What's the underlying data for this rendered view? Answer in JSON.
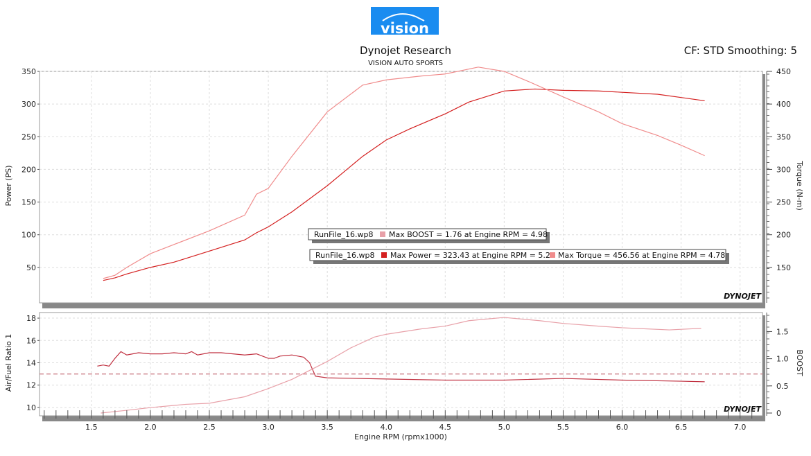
{
  "header": {
    "logo_text": "vision",
    "title": "Dynojet Research",
    "subtitle": "VISION AUTO SPORTS",
    "cf_text": "CF: STD Smoothing: 5",
    "watermark": "DYNOJET"
  },
  "colors": {
    "power": "#d42020",
    "torque": "#f08c8c",
    "afr": "#c03040",
    "boost": "#e8a0a8",
    "logo_bg": "#1a8cf0"
  },
  "chart_data": [
    {
      "type": "line",
      "xlabel": "Engine RPM (rpmx1000)",
      "ylabel": "Power (PS)",
      "ylabel_right": "Torque (N-m)",
      "xlim": [
        1.06,
        7.19
      ],
      "ylim": [
        0,
        350
      ],
      "ylim_right": [
        100,
        450
      ],
      "yticks": [
        50,
        100,
        150,
        200,
        250,
        300,
        350
      ],
      "yticks_right": [
        150,
        200,
        250,
        300,
        350,
        400,
        450
      ],
      "grid": true,
      "series": [
        {
          "axis": "left",
          "x": [
            1.6,
            1.7,
            1.8,
            2.0,
            2.2,
            2.5,
            2.8,
            2.9,
            3.0,
            3.2,
            3.5,
            3.8,
            4.0,
            4.2,
            4.5,
            4.7,
            5.0,
            5.26,
            5.5,
            5.8,
            6.0,
            6.3,
            6.5,
            6.7
          ],
          "values": [
            30,
            34,
            40,
            50,
            58,
            75,
            92,
            103,
            112,
            135,
            175,
            220,
            245,
            262,
            285,
            303,
            320,
            323,
            321,
            320,
            318,
            315,
            310,
            305
          ]
        },
        {
          "axis": "right",
          "x": [
            1.6,
            1.7,
            1.8,
            2.0,
            2.2,
            2.5,
            2.8,
            2.9,
            3.0,
            3.2,
            3.5,
            3.8,
            4.0,
            4.3,
            4.5,
            4.78,
            5.0,
            5.2,
            5.5,
            5.8,
            6.0,
            6.3,
            6.5,
            6.7
          ],
          "values": [
            133,
            138,
            150,
            171,
            185,
            206,
            230,
            262,
            271,
            320,
            388,
            429,
            437,
            443,
            446,
            456.56,
            450,
            435,
            411,
            388,
            370,
            352,
            337,
            321
          ]
        }
      ],
      "annotations": [
        {
          "file": "RunFile_16.wp8",
          "text": "Max BOOST = 1.76 at Engine RPM = 4.98",
          "color": "boost"
        },
        {
          "file": "RunFile_16.wp8",
          "text": "Max Power = 323.43 at Engine RPM = 5.26",
          "color": "power",
          "text2": "Max Torque = 456.56 at Engine RPM = 4.78",
          "color2": "torque"
        }
      ]
    },
    {
      "type": "line",
      "xlabel": "Engine RPM (rpmx1000)",
      "ylabel": "Air/Fuel Ratio 1",
      "ylabel_right": "BOOST",
      "xlim": [
        1.06,
        7.19
      ],
      "ylim": [
        9.5,
        18.5
      ],
      "ylim_right": [
        0,
        1.85
      ],
      "xticks": [
        "1.5",
        "2.0",
        "2.5",
        "3.0",
        "3.5",
        "4.0",
        "4.5",
        "5.0",
        "5.5",
        "6.0",
        "6.5",
        "7.0"
      ],
      "yticks": [
        10,
        12,
        14,
        16,
        18
      ],
      "yticks_right": [
        0,
        0.5,
        1.0,
        1.5
      ],
      "reference_line_afr": 13,
      "grid": true,
      "series": [
        {
          "axis": "left",
          "x": [
            1.55,
            1.6,
            1.65,
            1.7,
            1.75,
            1.8,
            1.85,
            1.9,
            2.0,
            2.1,
            2.2,
            2.3,
            2.35,
            2.4,
            2.5,
            2.6,
            2.7,
            2.8,
            2.9,
            3.0,
            3.05,
            3.1,
            3.2,
            3.3,
            3.35,
            3.4,
            3.5,
            4.0,
            4.5,
            5.0,
            5.5,
            6.0,
            6.5,
            6.7
          ],
          "values": [
            13.7,
            13.8,
            13.7,
            14.4,
            15.0,
            14.7,
            14.8,
            14.9,
            14.8,
            14.8,
            14.9,
            14.8,
            15.0,
            14.7,
            14.9,
            14.9,
            14.8,
            14.7,
            14.8,
            14.4,
            14.4,
            14.6,
            14.7,
            14.5,
            14.0,
            12.8,
            12.65,
            12.55,
            12.45,
            12.45,
            12.6,
            12.45,
            12.35,
            12.3
          ]
        },
        {
          "axis": "right",
          "x": [
            1.58,
            1.8,
            2.0,
            2.3,
            2.5,
            2.7,
            2.8,
            3.0,
            3.2,
            3.5,
            3.7,
            3.9,
            4.0,
            4.3,
            4.5,
            4.7,
            5.0,
            5.3,
            5.5,
            5.8,
            6.0,
            6.2,
            6.4,
            6.67
          ],
          "values": [
            0,
            0.05,
            0.1,
            0.16,
            0.18,
            0.26,
            0.3,
            0.45,
            0.62,
            0.95,
            1.2,
            1.4,
            1.45,
            1.55,
            1.6,
            1.7,
            1.76,
            1.7,
            1.65,
            1.6,
            1.57,
            1.55,
            1.53,
            1.56
          ]
        }
      ]
    }
  ]
}
